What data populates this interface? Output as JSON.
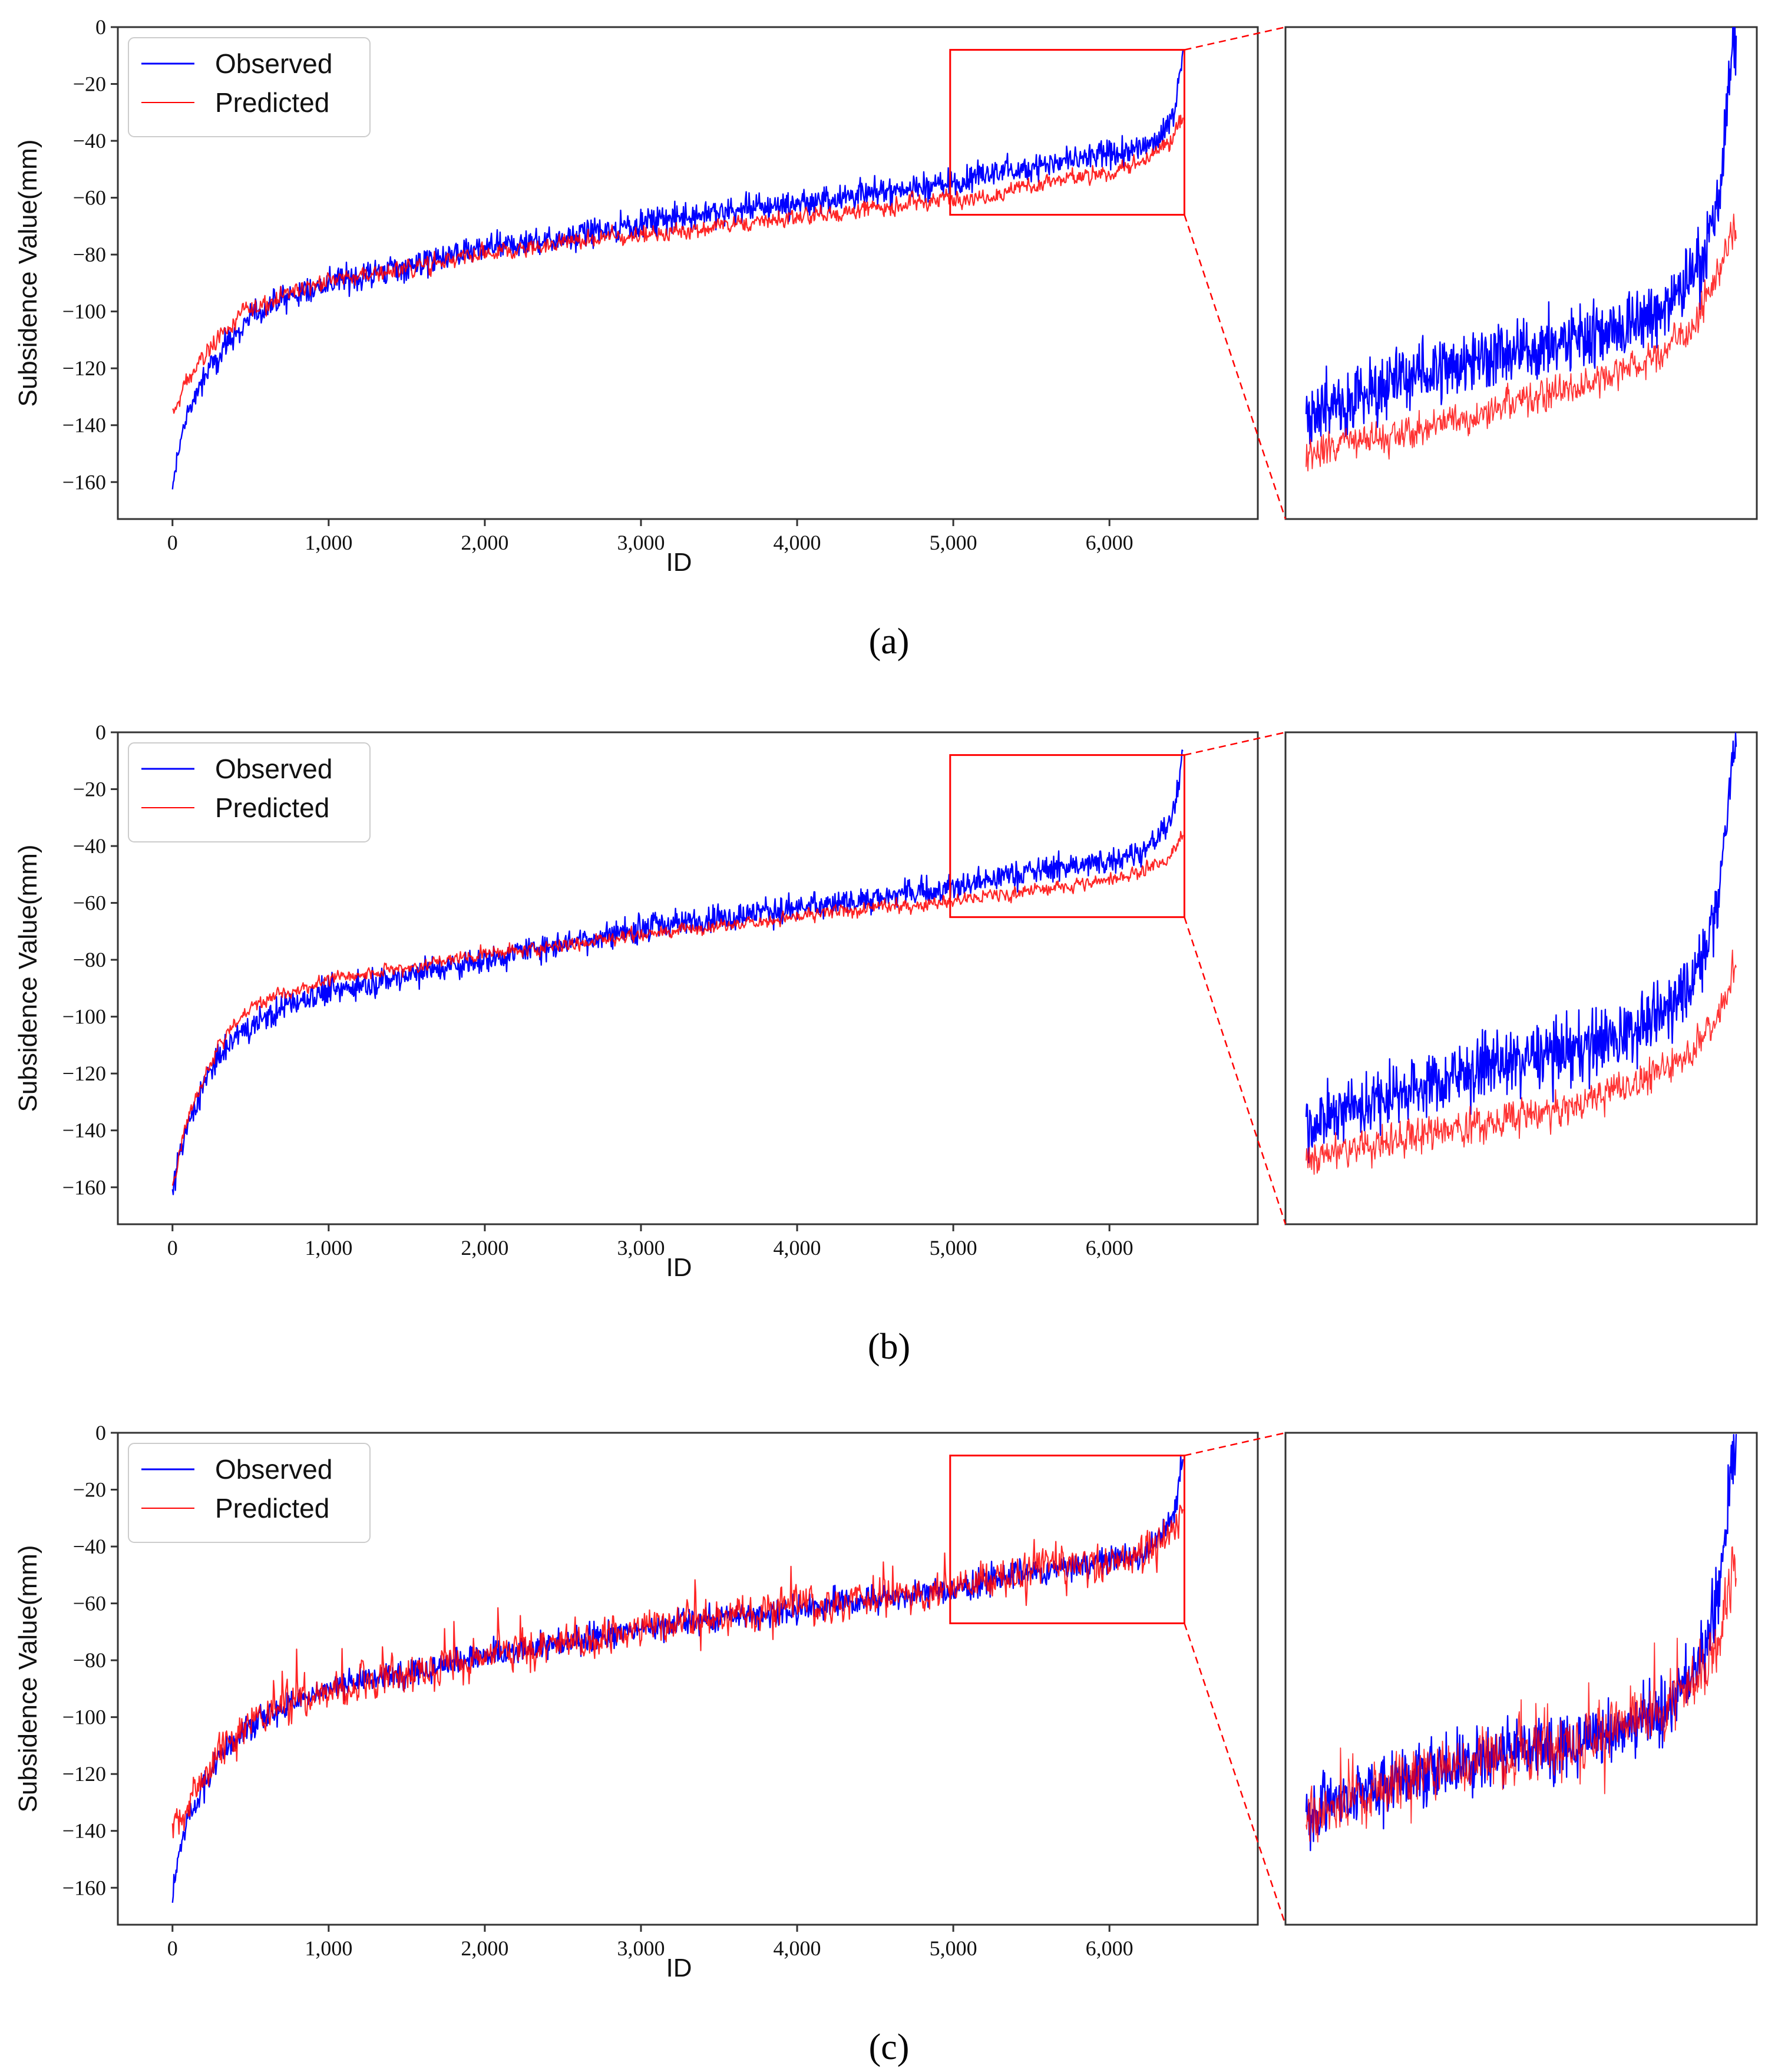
{
  "figure": {
    "captions": [
      "(a)",
      "(b)",
      "(c)"
    ]
  },
  "colors": {
    "observed": "#0000ff",
    "predicted": "#ff0000",
    "axis": "#333333",
    "zoom_box": "#ff0000"
  },
  "chart_data": [
    {
      "panel": "a",
      "type": "line",
      "caption": "(a)",
      "xlabel": "ID",
      "ylabel": "Subsidence Value(mm)",
      "xlim": [
        -350,
        6950
      ],
      "ylim": [
        -173,
        0
      ],
      "xticks": [
        0,
        1000,
        2000,
        3000,
        4000,
        5000,
        6000
      ],
      "xtick_labels": [
        "0",
        "1,000",
        "2,000",
        "3,000",
        "4,000",
        "5,000",
        "6,000"
      ],
      "yticks": [
        0,
        -20,
        -40,
        -60,
        -80,
        -100,
        -120,
        -140,
        -160
      ],
      "ytick_labels": [
        "0",
        "−20",
        "−40",
        "−60",
        "−80",
        "−100",
        "−120",
        "−140",
        "−160"
      ],
      "legend": [
        "Observed",
        "Predicted"
      ],
      "legend_position": "top-left",
      "zoom_window": {
        "x": [
          4980,
          6480
        ],
        "y": [
          -66,
          -8
        ]
      },
      "series": [
        {
          "name": "Observed",
          "color": "#0000ff",
          "x": [
            0,
            50,
            100,
            200,
            300,
            400,
            500,
            700,
            1000,
            1500,
            2000,
            2500,
            3000,
            3500,
            4000,
            4500,
            5000,
            5300,
            5600,
            5900,
            6200,
            6350,
            6420,
            6470
          ],
          "values": [
            -163,
            -145,
            -135,
            -124,
            -115,
            -108,
            -102,
            -96,
            -90,
            -84,
            -78,
            -74,
            -69,
            -65,
            -62,
            -58,
            -55,
            -51,
            -48,
            -46,
            -43,
            -37,
            -28,
            -8
          ]
        },
        {
          "name": "Predicted",
          "color": "#ff0000",
          "x": [
            0,
            50,
            100,
            200,
            300,
            400,
            500,
            700,
            1000,
            1500,
            2000,
            2500,
            3000,
            3500,
            4000,
            4500,
            5000,
            5300,
            5600,
            5900,
            6200,
            6350,
            6420,
            6470
          ],
          "values": [
            -137,
            -130,
            -124,
            -116,
            -108,
            -104,
            -99,
            -94,
            -89,
            -85,
            -80,
            -76,
            -73,
            -70,
            -67,
            -64,
            -60,
            -58,
            -55,
            -52,
            -48,
            -43,
            -37,
            -32
          ]
        }
      ]
    },
    {
      "panel": "b",
      "type": "line",
      "caption": "(b)",
      "xlabel": "ID",
      "ylabel": "Subsidence Value(mm)",
      "xlim": [
        -350,
        6950
      ],
      "ylim": [
        -173,
        0
      ],
      "xticks": [
        0,
        1000,
        2000,
        3000,
        4000,
        5000,
        6000
      ],
      "xtick_labels": [
        "0",
        "1,000",
        "2,000",
        "3,000",
        "4,000",
        "5,000",
        "6,000"
      ],
      "yticks": [
        0,
        -20,
        -40,
        -60,
        -80,
        -100,
        -120,
        -140,
        -160
      ],
      "ytick_labels": [
        "0",
        "−20",
        "−40",
        "−60",
        "−80",
        "−100",
        "−120",
        "−140",
        "−160"
      ],
      "legend": [
        "Observed",
        "Predicted"
      ],
      "legend_position": "top-left",
      "zoom_window": {
        "x": [
          4980,
          6480
        ],
        "y": [
          -65,
          -8
        ]
      },
      "series": [
        {
          "name": "Observed",
          "color": "#0000ff",
          "x": [
            0,
            50,
            100,
            200,
            300,
            400,
            500,
            700,
            1000,
            1500,
            2000,
            2500,
            3000,
            3500,
            4000,
            4500,
            5000,
            5300,
            5600,
            5900,
            6200,
            6350,
            6420,
            6470
          ],
          "values": [
            -163,
            -148,
            -138,
            -124,
            -114,
            -108,
            -103,
            -97,
            -91,
            -85,
            -80,
            -74,
            -69,
            -65,
            -62,
            -58,
            -55,
            -51,
            -48,
            -46,
            -42,
            -36,
            -27,
            -8
          ]
        },
        {
          "name": "Predicted",
          "color": "#ff0000",
          "x": [
            0,
            50,
            100,
            200,
            300,
            400,
            500,
            700,
            1000,
            1500,
            2000,
            2500,
            3000,
            3500,
            4000,
            4500,
            5000,
            5300,
            5600,
            5900,
            6200,
            6350,
            6420,
            6470
          ],
          "values": [
            -160,
            -146,
            -136,
            -122,
            -110,
            -102,
            -97,
            -92,
            -87,
            -83,
            -78,
            -75,
            -71,
            -68,
            -65,
            -62,
            -59,
            -57,
            -55,
            -53,
            -49,
            -45,
            -41,
            -36
          ]
        }
      ]
    },
    {
      "panel": "c",
      "type": "line",
      "caption": "(c)",
      "xlabel": "ID",
      "ylabel": "Subsidence Value(mm)",
      "xlim": [
        -350,
        6950
      ],
      "ylim": [
        -173,
        0
      ],
      "xticks": [
        0,
        1000,
        2000,
        3000,
        4000,
        5000,
        6000
      ],
      "xtick_labels": [
        "0",
        "1,000",
        "2,000",
        "3,000",
        "4,000",
        "5,000",
        "6,000"
      ],
      "yticks": [
        0,
        -20,
        -40,
        -60,
        -80,
        -100,
        -120,
        -140,
        -160
      ],
      "ytick_labels": [
        "0",
        "−20",
        "−40",
        "−60",
        "−80",
        "−100",
        "−120",
        "−140",
        "−160"
      ],
      "legend": [
        "Observed",
        "Predicted"
      ],
      "legend_position": "top-left",
      "zoom_window": {
        "x": [
          4980,
          6480
        ],
        "y": [
          -67,
          -8
        ]
      },
      "series": [
        {
          "name": "Observed",
          "color": "#0000ff",
          "x": [
            0,
            50,
            100,
            200,
            300,
            400,
            500,
            700,
            1000,
            1500,
            2000,
            2500,
            3000,
            3500,
            4000,
            4500,
            5000,
            5300,
            5600,
            5900,
            6200,
            6350,
            6420,
            6470
          ],
          "values": [
            -163,
            -146,
            -136,
            -124,
            -114,
            -108,
            -103,
            -96,
            -90,
            -84,
            -79,
            -74,
            -69,
            -65,
            -62,
            -58,
            -55,
            -51,
            -48,
            -46,
            -43,
            -36,
            -27,
            -8
          ]
        },
        {
          "name": "Predicted",
          "color": "#ff0000",
          "x": [
            0,
            50,
            100,
            200,
            300,
            400,
            500,
            700,
            1000,
            1500,
            2000,
            2500,
            3000,
            3500,
            4000,
            4500,
            5000,
            5300,
            5600,
            5900,
            6200,
            6350,
            6420,
            6470
          ],
          "values": [
            -138,
            -134,
            -130,
            -121,
            -112,
            -107,
            -102,
            -96,
            -90,
            -84,
            -79,
            -74,
            -69,
            -65,
            -62,
            -58,
            -55,
            -51,
            -48,
            -46,
            -43,
            -38,
            -32,
            -24
          ]
        }
      ]
    }
  ]
}
